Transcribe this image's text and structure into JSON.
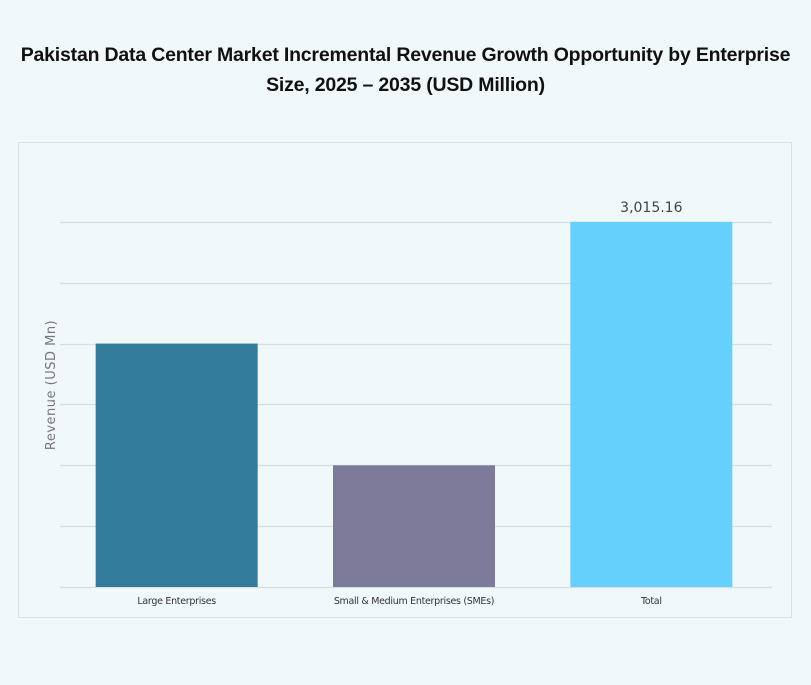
{
  "chart_data": {
    "type": "bar",
    "title": "Pakistan Data Center Market Incremental Revenue Growth Opportunity by Enterprise Size, 2025 – 2035 (USD Million)",
    "xlabel": "",
    "ylabel": "Revenue (USD Mn)",
    "categories": [
      "Large Enterprises",
      "Small & Medium Enterprises (SMEs)",
      "Total"
    ],
    "values": [
      2010.1,
      1005.05,
      3015.16
    ],
    "data_labels": [
      "",
      "",
      "3,015.16"
    ],
    "colors": [
      "#327b9a",
      "#7e7b9a",
      "#66d0fc"
    ],
    "ylim": [
      0,
      3517.69
    ],
    "grid_step": 502.53,
    "grid": true,
    "legend": "none"
  }
}
